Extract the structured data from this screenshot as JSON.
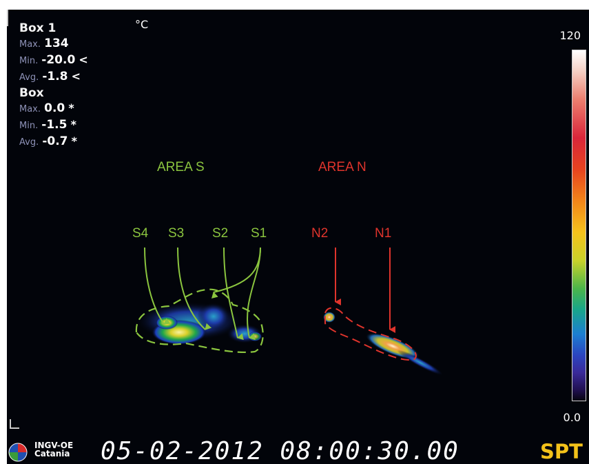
{
  "overlay": {
    "unit": "°C",
    "scale_max": "120",
    "scale_min": "0.0",
    "box1": {
      "title": "Box 1",
      "rows": [
        {
          "key": "Max.",
          "value": "134",
          "flag": ""
        },
        {
          "key": "Min.",
          "value": "-20.0",
          "flag": "<"
        },
        {
          "key": "Avg.",
          "value": "-1.8",
          "flag": "<"
        }
      ]
    },
    "box": {
      "title": "Box",
      "rows": [
        {
          "key": "Max.",
          "value": "0.0",
          "flag": "*"
        },
        {
          "key": "Min.",
          "value": "-1.5",
          "flag": "*"
        },
        {
          "key": "Avg.",
          "value": "-0.7",
          "flag": "*"
        }
      ]
    }
  },
  "annotations": {
    "area_s": "AREA S",
    "area_n": "AREA N",
    "vents_s": [
      "S4",
      "S3",
      "S2",
      "S1"
    ],
    "vents_n": [
      "N2",
      "N1"
    ],
    "colors": {
      "area_s": "#8bc53f",
      "area_n": "#e0342c"
    }
  },
  "footer": {
    "logo_line1": "INGV-OE",
    "logo_line2": "Catania",
    "timestamp": "05-02-2012 08:00:30.00",
    "brand": "SPT"
  },
  "icons": [
    "globe-logo-icon",
    "crosshair-corner-icon"
  ]
}
